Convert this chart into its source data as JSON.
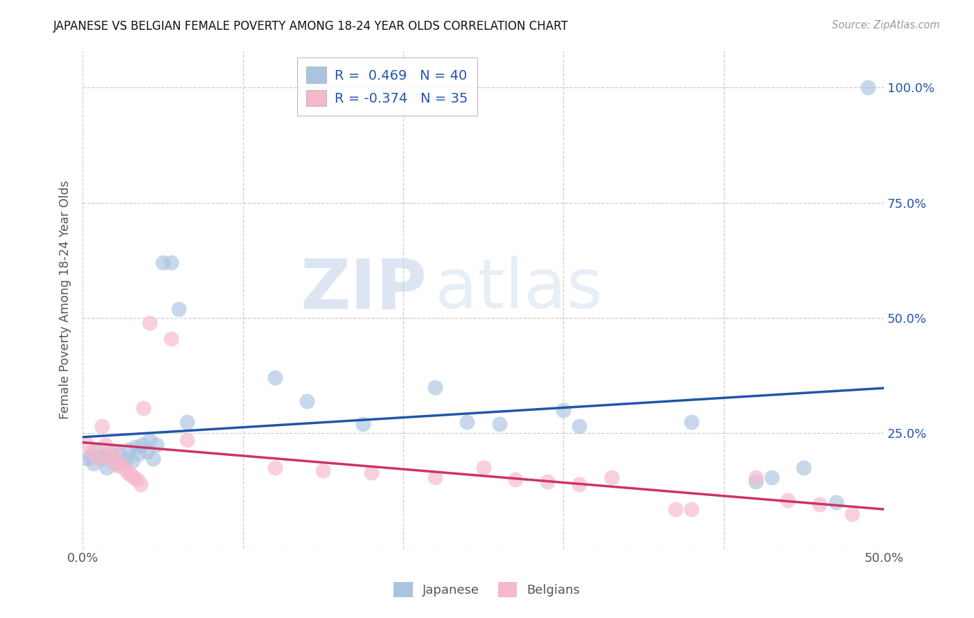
{
  "title": "JAPANESE VS BELGIAN FEMALE POVERTY AMONG 18-24 YEAR OLDS CORRELATION CHART",
  "source": "Source: ZipAtlas.com",
  "ylabel": "Female Poverty Among 18-24 Year Olds",
  "xlim": [
    0.0,
    0.5
  ],
  "ylim": [
    0.0,
    1.08
  ],
  "yticks": [
    0.0,
    0.25,
    0.5,
    0.75,
    1.0
  ],
  "ytick_labels_right": [
    "",
    "25.0%",
    "50.0%",
    "75.0%",
    "100.0%"
  ],
  "xticks": [
    0.0,
    0.1,
    0.2,
    0.3,
    0.4,
    0.5
  ],
  "xtick_labels": [
    "0.0%",
    "",
    "",
    "",
    "",
    "50.0%"
  ],
  "japanese_r": 0.469,
  "japanese_n": 40,
  "belgian_r": -0.374,
  "belgian_n": 35,
  "japanese_color": "#a8c4e0",
  "belgian_color": "#f5b8cc",
  "line_japanese_color": "#2255aa",
  "line_belgian_color": "#cc3366",
  "watermark_zip": "ZIP",
  "watermark_atlas": "atlas",
  "japanese_x": [
    0.003,
    0.005,
    0.007,
    0.009,
    0.011,
    0.013,
    0.015,
    0.017,
    0.019,
    0.021,
    0.023,
    0.025,
    0.027,
    0.029,
    0.031,
    0.033,
    0.035,
    0.037,
    0.04,
    0.042,
    0.044,
    0.046,
    0.05,
    0.055,
    0.06,
    0.065,
    0.12,
    0.14,
    0.175,
    0.22,
    0.24,
    0.26,
    0.3,
    0.31,
    0.38,
    0.42,
    0.43,
    0.45,
    0.47,
    0.49
  ],
  "japanese_y": [
    0.195,
    0.2,
    0.185,
    0.215,
    0.195,
    0.2,
    0.175,
    0.21,
    0.195,
    0.185,
    0.205,
    0.185,
    0.195,
    0.215,
    0.19,
    0.22,
    0.205,
    0.225,
    0.21,
    0.235,
    0.195,
    0.225,
    0.62,
    0.62,
    0.52,
    0.275,
    0.37,
    0.32,
    0.27,
    0.35,
    0.275,
    0.27,
    0.3,
    0.265,
    0.275,
    0.145,
    0.155,
    0.175,
    0.1,
    1.0
  ],
  "belgian_x": [
    0.003,
    0.006,
    0.009,
    0.012,
    0.014,
    0.016,
    0.018,
    0.02,
    0.022,
    0.024,
    0.026,
    0.028,
    0.03,
    0.032,
    0.034,
    0.036,
    0.038,
    0.042,
    0.055,
    0.065,
    0.12,
    0.15,
    0.18,
    0.22,
    0.25,
    0.27,
    0.29,
    0.31,
    0.33,
    0.37,
    0.38,
    0.42,
    0.44,
    0.46,
    0.48
  ],
  "belgian_y": [
    0.225,
    0.21,
    0.195,
    0.265,
    0.225,
    0.2,
    0.19,
    0.21,
    0.18,
    0.185,
    0.175,
    0.165,
    0.16,
    0.155,
    0.15,
    0.14,
    0.305,
    0.49,
    0.455,
    0.235,
    0.175,
    0.17,
    0.165,
    0.155,
    0.175,
    0.15,
    0.145,
    0.14,
    0.155,
    0.085,
    0.085,
    0.155,
    0.105,
    0.095,
    0.075
  ]
}
